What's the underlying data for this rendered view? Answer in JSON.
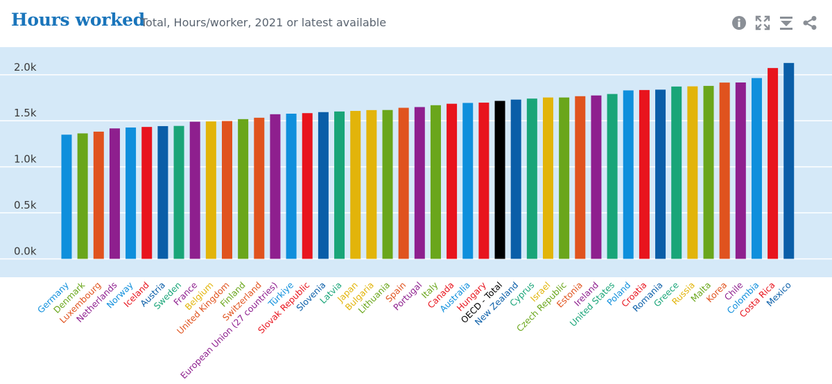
{
  "header": {
    "title": "Hours worked",
    "subtitle": "Total, Hours/worker, 2021 or latest available"
  },
  "toolbar": {
    "icons": [
      "info-icon",
      "fullscreen-icon",
      "download-icon",
      "share-icon"
    ],
    "icon_color": "#8a8f96"
  },
  "colors": {
    "plot_background": "#d5e9f8",
    "gridline": "#ffffff",
    "tick_text": "#3a3a3a"
  },
  "chart_data": {
    "type": "bar",
    "title": "Hours worked",
    "subtitle": "Total, Hours/worker, 2021 or latest available",
    "xlabel": "",
    "ylabel": "",
    "ylim": [
      -0.2,
      2.3
    ],
    "ytick_values": [
      0.0,
      0.5,
      1.0,
      1.5,
      2.0
    ],
    "ytick_labels": [
      "0.0k",
      "0.5k",
      "1.0k",
      "1.5k",
      "2.0k"
    ],
    "units": "thousand hours per worker",
    "grid": true,
    "legend": "none",
    "categories": [
      "Germany",
      "Denmark",
      "Luxembourg",
      "Netherlands",
      "Norway",
      "Iceland",
      "Austria",
      "Sweden",
      "France",
      "Belgium",
      "United Kingdom",
      "Finland",
      "Switzerland",
      "European Union (27 countries)",
      "Türkiye",
      "Slovak Republic",
      "Slovenia",
      "Latvia",
      "Japan",
      "Bulgaria",
      "Lithuania",
      "Spain",
      "Portugal",
      "Italy",
      "Canada",
      "Australia",
      "Hungary",
      "OECD - Total",
      "New Zealand",
      "Cyprus",
      "Israel",
      "Czech Republic",
      "Estonia",
      "Ireland",
      "United States",
      "Poland",
      "Croatia",
      "Romania",
      "Greece",
      "Russia",
      "Malta",
      "Korea",
      "Chile",
      "Colombia",
      "Costa Rica",
      "Mexico"
    ],
    "values": [
      1.349,
      1.363,
      1.382,
      1.417,
      1.427,
      1.433,
      1.442,
      1.444,
      1.49,
      1.493,
      1.497,
      1.518,
      1.533,
      1.571,
      1.577,
      1.583,
      1.594,
      1.601,
      1.607,
      1.616,
      1.617,
      1.641,
      1.649,
      1.669,
      1.685,
      1.694,
      1.697,
      1.716,
      1.73,
      1.741,
      1.753,
      1.753,
      1.767,
      1.775,
      1.791,
      1.83,
      1.834,
      1.838,
      1.872,
      1.874,
      1.879,
      1.915,
      1.916,
      1.964,
      2.073,
      2.128
    ],
    "colors": [
      "#0f8fdc",
      "#6aa61b",
      "#e0531e",
      "#8e1f8e",
      "#0f8fdc",
      "#e8141d",
      "#0a5ea8",
      "#19a578",
      "#8e1f8e",
      "#e2b40a",
      "#e0531e",
      "#6aa61b",
      "#e0531e",
      "#8e1f8e",
      "#0f8fdc",
      "#e8141d",
      "#0a5ea8",
      "#19a578",
      "#e2b40a",
      "#e2b40a",
      "#6aa61b",
      "#e0531e",
      "#8e1f8e",
      "#6aa61b",
      "#e8141d",
      "#0f8fdc",
      "#e8141d",
      "#000000",
      "#0a5ea8",
      "#19a578",
      "#e2b40a",
      "#6aa61b",
      "#e0531e",
      "#8e1f8e",
      "#19a578",
      "#0f8fdc",
      "#e8141d",
      "#0a5ea8",
      "#19a578",
      "#e2b40a",
      "#6aa61b",
      "#e0531e",
      "#8e1f8e",
      "#0f8fdc",
      "#e8141d",
      "#0a5ea8"
    ]
  }
}
